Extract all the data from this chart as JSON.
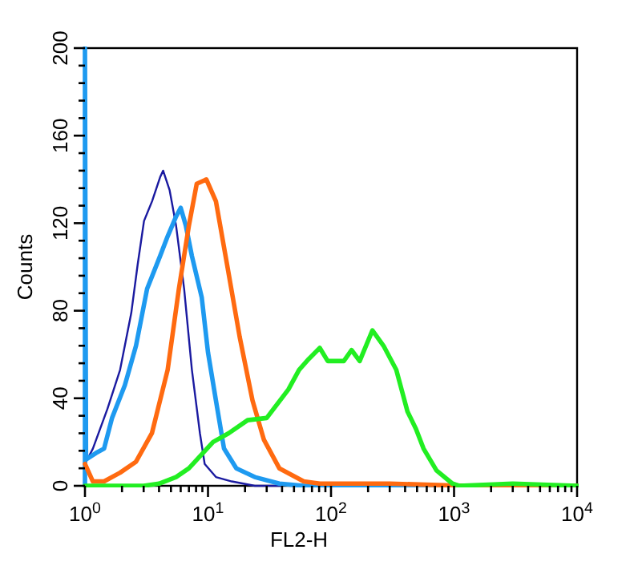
{
  "chart_data": {
    "type": "line",
    "xlabel": "FL2-H",
    "ylabel": "Counts",
    "log": "x",
    "xlim": [
      1,
      10000
    ],
    "ylim": [
      0,
      200
    ],
    "xticks": [
      {
        "value": 1,
        "label": "10$^{0}$"
      },
      {
        "value": 2,
        "label": null
      },
      {
        "value": 3,
        "label": null
      },
      {
        "value": 4,
        "label": null
      },
      {
        "value": 5,
        "label": null
      },
      {
        "value": 6,
        "label": null
      },
      {
        "value": 7,
        "label": null
      },
      {
        "value": 8,
        "label": null
      },
      {
        "value": 9,
        "label": null
      },
      {
        "value": 10,
        "label": "10$^{1}$"
      },
      {
        "value": 20,
        "label": null
      },
      {
        "value": 30,
        "label": null
      },
      {
        "value": 40,
        "label": null
      },
      {
        "value": 50,
        "label": null
      },
      {
        "value": 60,
        "label": null
      },
      {
        "value": 70,
        "label": null
      },
      {
        "value": 80,
        "label": null
      },
      {
        "value": 90,
        "label": null
      },
      {
        "value": 100,
        "label": "10$^{2}$"
      },
      {
        "value": 200,
        "label": null
      },
      {
        "value": 300,
        "label": null
      },
      {
        "value": 400,
        "label": null
      },
      {
        "value": 500,
        "label": null
      },
      {
        "value": 600,
        "label": null
      },
      {
        "value": 700,
        "label": null
      },
      {
        "value": 800,
        "label": null
      },
      {
        "value": 900,
        "label": null
      },
      {
        "value": 1000,
        "label": "10$^{3}$"
      },
      {
        "value": 2000,
        "label": null
      },
      {
        "value": 3000,
        "label": null
      },
      {
        "value": 4000,
        "label": null
      },
      {
        "value": 5000,
        "label": null
      },
      {
        "value": 6000,
        "label": null
      },
      {
        "value": 7000,
        "label": null
      },
      {
        "value": 8000,
        "label": null
      },
      {
        "value": 9000,
        "label": null
      },
      {
        "value": 10000,
        "label": "10$^{4}$"
      }
    ],
    "yticks": [
      0,
      {
        "value": 8,
        "label": null
      },
      {
        "value": 16,
        "label": null
      },
      {
        "value": 24,
        "label": null
      },
      {
        "value": 32,
        "label": null
      },
      40,
      {
        "value": 48,
        "label": null
      },
      {
        "value": 56,
        "label": null
      },
      {
        "value": 64,
        "label": null
      },
      {
        "value": 72,
        "label": null
      },
      80,
      {
        "value": 88,
        "label": null
      },
      {
        "value": 96,
        "label": null
      },
      {
        "value": 104,
        "label": null
      },
      {
        "value": 112,
        "label": null
      },
      120,
      {
        "value": 128,
        "label": null
      },
      {
        "value": 136,
        "label": null
      },
      {
        "value": 144,
        "label": null
      },
      {
        "value": 152,
        "label": null
      },
      160,
      {
        "value": 168,
        "label": null
      },
      {
        "value": 176,
        "label": null
      },
      {
        "value": 184,
        "label": null
      },
      {
        "value": 192,
        "label": null
      },
      200
    ],
    "grid": false,
    "marker": "none",
    "series": [
      {
        "color": "#1a1aa0",
        "x": [
          1,
          1.16,
          1.52,
          1.93,
          2.38,
          2.68,
          3.02,
          3.51,
          4.08,
          4.32,
          4.88,
          5.5,
          6.4,
          7.4,
          8.6,
          9.4,
          11.6,
          15.6,
          24,
          40
        ],
        "values": [
          10,
          17,
          35,
          53,
          79,
          101,
          121,
          130,
          141,
          144,
          135,
          119,
          90,
          53,
          24,
          10,
          4,
          2,
          0,
          0
        ]
      },
      {
        "color": "#1e9af0",
        "x": [
          1,
          1,
          1.02,
          1.23,
          1.43,
          1.66,
          2.11,
          2.6,
          3.2,
          4.08,
          4.7,
          5.5,
          6,
          6.6,
          7.4,
          8.9,
          10,
          11.6,
          13.5,
          17,
          24,
          38,
          60,
          1000,
          10000
        ],
        "values": [
          0,
          200,
          12,
          15,
          17,
          31,
          46,
          64,
          90,
          105,
          114,
          123,
          127,
          119,
          105,
          86,
          61,
          39,
          17,
          8,
          4,
          1,
          0,
          0,
          0
        ]
      },
      {
        "color": "#ff6a10",
        "x": [
          1,
          1.16,
          1.43,
          1.93,
          2.6,
          3.5,
          4.7,
          5.8,
          7,
          8.1,
          9.7,
          11.6,
          14.3,
          18.1,
          23,
          28.5,
          38,
          60,
          81,
          300,
          1200,
          10000
        ],
        "values": [
          10,
          2,
          2,
          6,
          11,
          24,
          53,
          90,
          119,
          138,
          140,
          130,
          101,
          68,
          39,
          21,
          8,
          2,
          1,
          1,
          0,
          0
        ]
      },
      {
        "color": "#22ee22",
        "x": [
          1,
          3,
          4,
          5.5,
          7,
          9.1,
          11,
          14.7,
          21,
          30,
          45,
          55,
          66,
          81,
          94,
          127,
          147,
          171,
          217,
          267,
          339,
          418,
          490,
          565,
          720,
          970,
          1100,
          3000,
          10000
        ],
        "values": [
          0,
          0,
          1,
          4,
          8,
          15,
          20,
          24,
          30,
          31,
          44,
          53,
          58,
          63,
          57,
          57,
          62,
          57,
          71,
          64,
          53,
          34,
          26,
          17,
          7,
          1,
          0,
          1,
          0
        ]
      }
    ]
  }
}
